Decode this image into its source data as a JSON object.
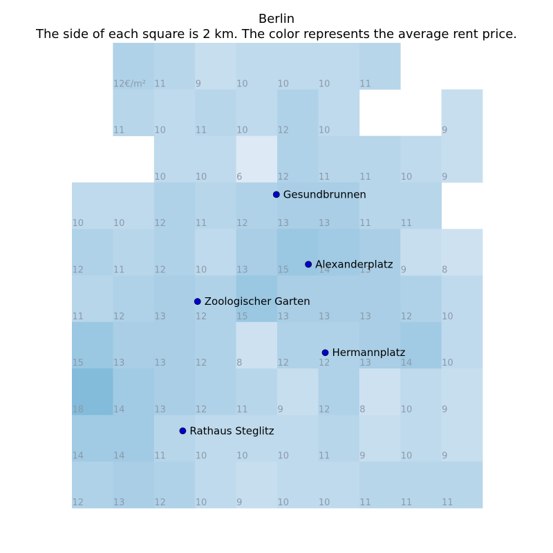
{
  "title": "Berlin",
  "subtitle": "The side of each square is 2 km. The color represents the average rent price.",
  "unit_suffix": "€/m²",
  "chart_data": {
    "type": "heatmap",
    "grid": [
      [
        null,
        12,
        11,
        9,
        10,
        10,
        10,
        11,
        null,
        null
      ],
      [
        null,
        11,
        10,
        11,
        10,
        12,
        10,
        null,
        null,
        9
      ],
      [
        null,
        null,
        10,
        10,
        6,
        12,
        11,
        11,
        10,
        9
      ],
      [
        10,
        10,
        12,
        11,
        12,
        13,
        13,
        11,
        11,
        null
      ],
      [
        12,
        11,
        12,
        10,
        13,
        15,
        14,
        13,
        9,
        8
      ],
      [
        11,
        12,
        13,
        12,
        15,
        13,
        13,
        13,
        12,
        10
      ],
      [
        15,
        13,
        13,
        12,
        8,
        12,
        12,
        13,
        14,
        10
      ],
      [
        18,
        14,
        13,
        12,
        11,
        9,
        12,
        8,
        10,
        9
      ],
      [
        14,
        14,
        11,
        10,
        10,
        10,
        11,
        9,
        10,
        9
      ],
      [
        12,
        13,
        12,
        10,
        9,
        10,
        10,
        11,
        11,
        11
      ]
    ],
    "value_range": [
      6,
      18
    ],
    "color_low": "#dde9f5",
    "color_high": "#83bbdb",
    "locations": [
      {
        "name": "Gesundbrunnen",
        "col": 4.98,
        "row": 3.26
      },
      {
        "name": "Alexanderplatz",
        "col": 5.76,
        "row": 4.76
      },
      {
        "name": "Zoologischer Garten",
        "col": 3.06,
        "row": 5.56
      },
      {
        "name": "Hermannplatz",
        "col": 6.17,
        "row": 6.66
      },
      {
        "name": "Rathaus Steglitz",
        "col": 2.7,
        "row": 8.34
      }
    ],
    "marker_color": "#0000cc"
  }
}
